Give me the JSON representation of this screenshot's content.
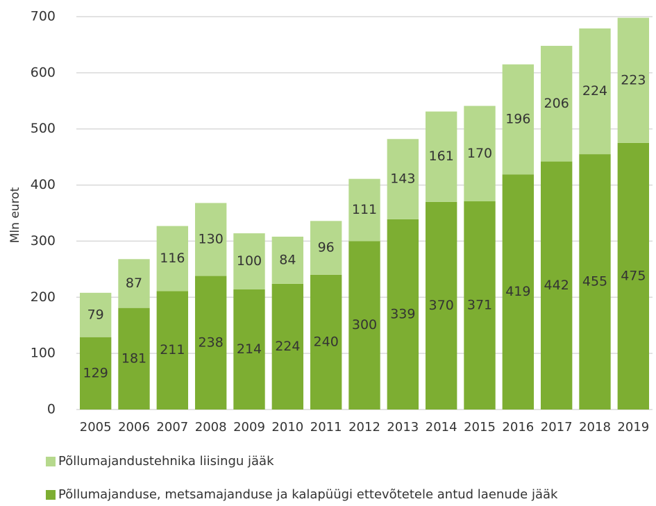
{
  "chart_data": {
    "type": "stacked_bar",
    "ylabel": "Mln eurot",
    "categories": [
      "2005",
      "2006",
      "2007",
      "2008",
      "2009",
      "2010",
      "2011",
      "2012",
      "2013",
      "2014",
      "2015",
      "2016",
      "2017",
      "2018",
      "2019"
    ],
    "series": [
      {
        "name": "Põllumajanduse, metsamajanduse ja kalapüügi ettevõtetele antud laenude jääk",
        "color": "#7dae32",
        "values": [
          129,
          181,
          211,
          238,
          214,
          224,
          240,
          300,
          339,
          370,
          371,
          419,
          442,
          455,
          475
        ]
      },
      {
        "name": "Põllumajandustehnika liisingu jääk",
        "color": "#b6d98d",
        "values": [
          79,
          87,
          116,
          130,
          100,
          84,
          96,
          111,
          143,
          161,
          170,
          196,
          206,
          224,
          223
        ]
      }
    ],
    "ylim": [
      0,
      700
    ],
    "yticks": [
      0,
      100,
      200,
      300,
      400,
      500,
      600,
      700
    ],
    "grid": true
  }
}
